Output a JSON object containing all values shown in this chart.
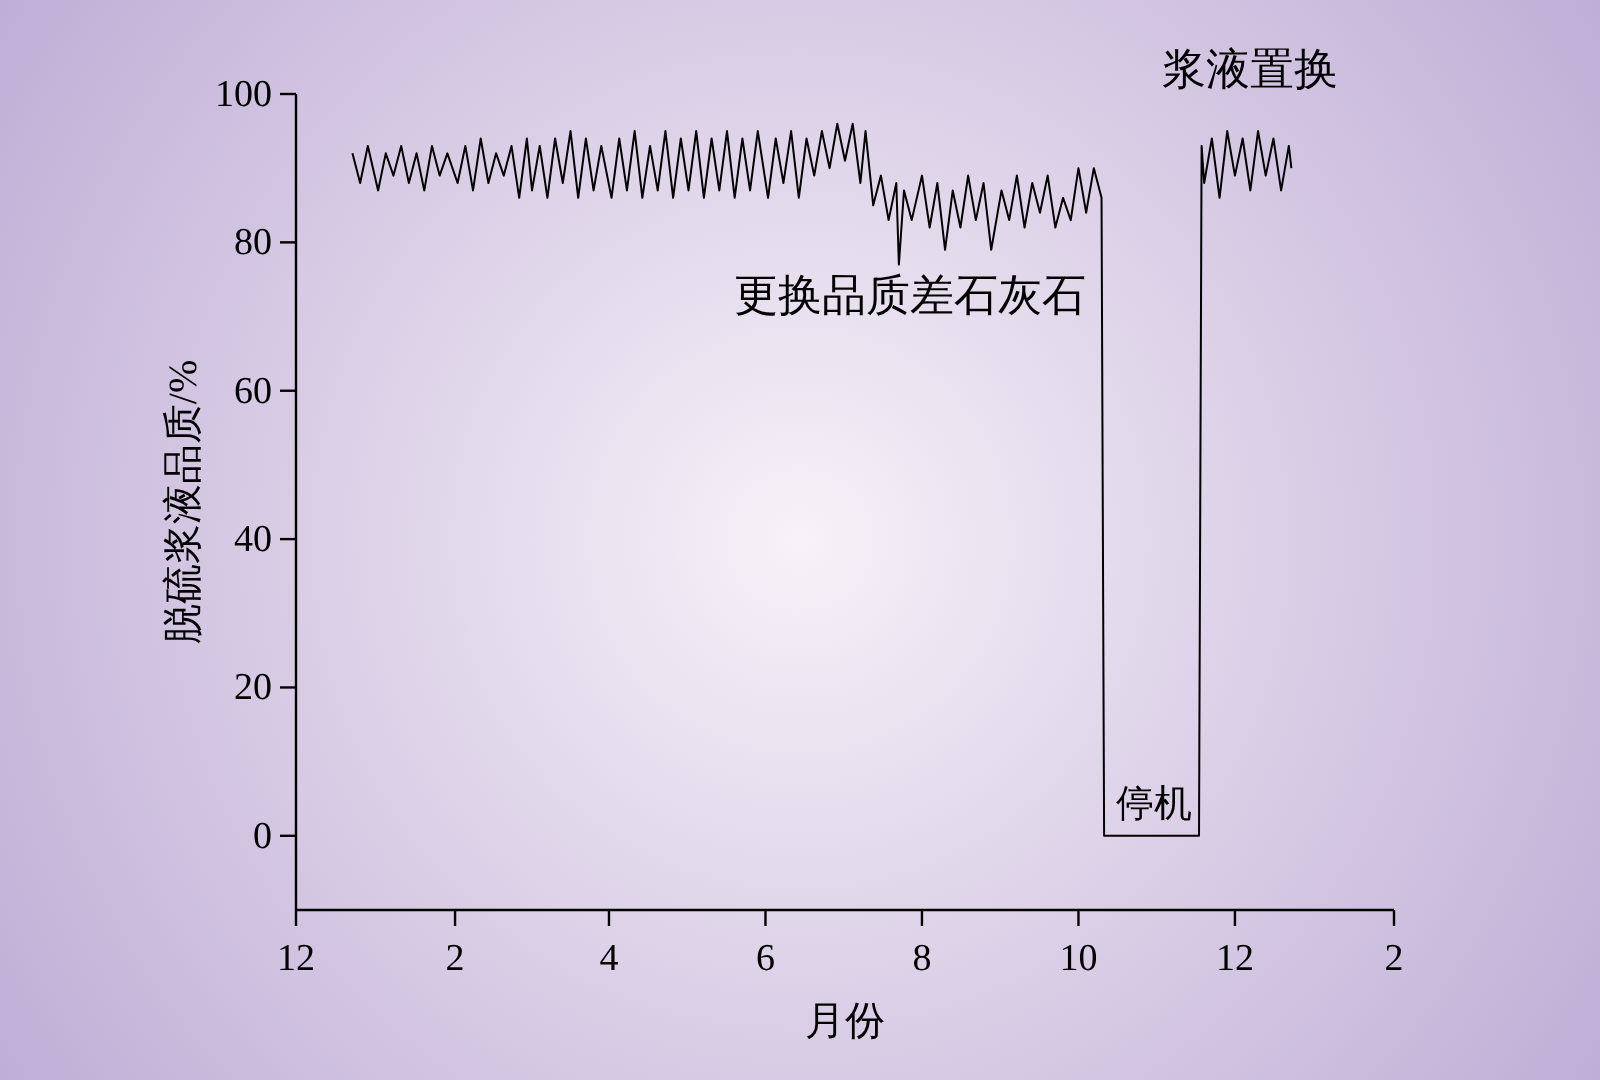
{
  "chart_data": {
    "type": "line",
    "xlabel": "月份",
    "ylabel": "脱硫浆液品质/%",
    "xlim": [
      "2011-12-01",
      "2013-02-01"
    ],
    "ylim": [
      -10,
      100
    ],
    "xticks": [
      {
        "value": "2011-12-01",
        "label": "12"
      },
      {
        "value": "2012-02-01",
        "label": "2"
      },
      {
        "value": "2012-04-01",
        "label": "4"
      },
      {
        "value": "2012-06-01",
        "label": "6"
      },
      {
        "value": "2012-08-01",
        "label": "8"
      },
      {
        "value": "2012-10-01",
        "label": "10"
      },
      {
        "value": "2012-12-01",
        "label": "12"
      },
      {
        "value": "2013-02-01",
        "label": "2"
      }
    ],
    "yticks": [
      0,
      20,
      40,
      60,
      80,
      100
    ],
    "grid": false,
    "series": [
      {
        "color": "#000000",
        "x": [
          "2011-12-23",
          "2011-12-26",
          "2011-12-29",
          "2012-01-02",
          "2012-01-05",
          "2012-01-08",
          "2012-01-11",
          "2012-01-14",
          "2012-01-17",
          "2012-01-20",
          "2012-01-23",
          "2012-01-26",
          "2012-01-29",
          "2012-02-02",
          "2012-02-05",
          "2012-02-08",
          "2012-02-11",
          "2012-02-14",
          "2012-02-17",
          "2012-02-20",
          "2012-02-23",
          "2012-02-26",
          "2012-02-29",
          "2012-03-02",
          "2012-03-05",
          "2012-03-08",
          "2012-03-11",
          "2012-03-14",
          "2012-03-17",
          "2012-03-20",
          "2012-03-23",
          "2012-03-26",
          "2012-03-29",
          "2012-04-02",
          "2012-04-05",
          "2012-04-08",
          "2012-04-11",
          "2012-04-14",
          "2012-04-17",
          "2012-04-20",
          "2012-04-23",
          "2012-04-26",
          "2012-04-29",
          "2012-05-02",
          "2012-05-05",
          "2012-05-08",
          "2012-05-11",
          "2012-05-14",
          "2012-05-17",
          "2012-05-20",
          "2012-05-23",
          "2012-05-26",
          "2012-05-29",
          "2012-06-02",
          "2012-06-05",
          "2012-06-08",
          "2012-06-11",
          "2012-06-14",
          "2012-06-17",
          "2012-06-20",
          "2012-06-23",
          "2012-06-26",
          "2012-06-29",
          "2012-07-02",
          "2012-07-05",
          "2012-07-08",
          "2012-07-10",
          "2012-07-13",
          "2012-07-16",
          "2012-07-19",
          "2012-07-22",
          "2012-07-23",
          "2012-07-25",
          "2012-07-28",
          "2012-08-01",
          "2012-08-04",
          "2012-08-07",
          "2012-08-10",
          "2012-08-13",
          "2012-08-16",
          "2012-08-19",
          "2012-08-22",
          "2012-08-25",
          "2012-08-28",
          "2012-09-01",
          "2012-09-04",
          "2012-09-07",
          "2012-09-10",
          "2012-09-13",
          "2012-09-16",
          "2012-09-19",
          "2012-09-22",
          "2012-09-25",
          "2012-09-28",
          "2012-10-01",
          "2012-10-04",
          "2012-10-07",
          "2012-10-10",
          "2012-10-11",
          "2012-11-17",
          "2012-11-18",
          "2012-11-19",
          "2012-11-22",
          "2012-11-25",
          "2012-11-28",
          "2012-12-01",
          "2012-12-04",
          "2012-12-07",
          "2012-12-10",
          "2012-12-13",
          "2012-12-16",
          "2012-12-19",
          "2012-12-22",
          "2012-12-23"
        ],
        "values": [
          92,
          88,
          93,
          87,
          92,
          89,
          93,
          88,
          92,
          87,
          93,
          89,
          92,
          88,
          93,
          87,
          94,
          88,
          92,
          89,
          93,
          86,
          94,
          87,
          93,
          86,
          94,
          88,
          95,
          86,
          94,
          87,
          93,
          86,
          94,
          87,
          95,
          86,
          93,
          87,
          95,
          86,
          94,
          87,
          95,
          86,
          94,
          87,
          95,
          86,
          94,
          87,
          95,
          86,
          94,
          88,
          95,
          86,
          94,
          89,
          95,
          90,
          96,
          91,
          96,
          88,
          95,
          85,
          89,
          83,
          88,
          77,
          87,
          83,
          89,
          82,
          88,
          79,
          87,
          82,
          89,
          83,
          88,
          79,
          87,
          83,
          89,
          82,
          88,
          84,
          89,
          82,
          86,
          83,
          90,
          84,
          90,
          86,
          0,
          0,
          93,
          88,
          94,
          86,
          95,
          89,
          94,
          87,
          95,
          89,
          94,
          87,
          93,
          90
        ]
      }
    ],
    "annotations": [
      "更换品质差石灰石",
      "停机",
      "浆液置换"
    ]
  }
}
